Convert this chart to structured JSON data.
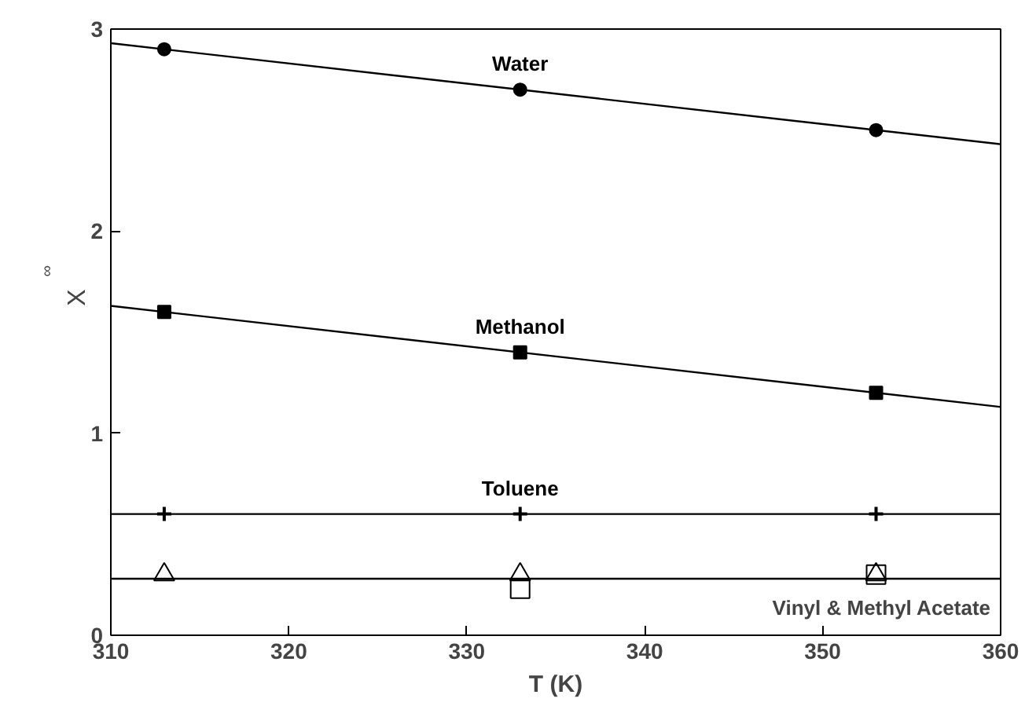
{
  "chart_data": {
    "type": "scatter",
    "xlabel": "T (K)",
    "ylabel": "X$^{∞}$",
    "xlim": [
      310,
      360
    ],
    "ylim": [
      0,
      3
    ],
    "xticks": [
      310,
      320,
      330,
      340,
      350,
      360
    ],
    "yticks": [
      0,
      1,
      2,
      3
    ],
    "grid": false,
    "series": [
      {
        "name": "Water",
        "marker": "circle",
        "color": "#000000",
        "x": [
          313,
          333,
          353
        ],
        "values": [
          2.9,
          2.7,
          2.5
        ]
      },
      {
        "type": "line",
        "color": "#000000",
        "x": [
          310,
          360
        ],
        "values": [
          2.93,
          2.43
        ]
      },
      {
        "name": "Methanol",
        "marker": "square",
        "color": "#000000",
        "x": [
          313,
          333,
          353
        ],
        "values": [
          1.6,
          1.4,
          1.2
        ]
      },
      {
        "type": "line",
        "color": "#000000",
        "x": [
          310,
          360
        ],
        "values": [
          1.63,
          1.13
        ]
      },
      {
        "name": "Toluene",
        "marker": "cross",
        "color": "#000000",
        "x": [
          313,
          333,
          353
        ],
        "values": [
          0.6,
          0.6,
          0.6
        ]
      },
      {
        "type": "line",
        "color": "#000000",
        "x": [
          310,
          360
        ],
        "values": [
          0.6,
          0.6
        ]
      },
      {
        "marker": "triangle",
        "color": "#000000",
        "x": [
          313,
          333,
          353
        ],
        "values": [
          0.3,
          0.3,
          0.3
        ]
      },
      {
        "marker": "square",
        "color": "#000000",
        "x": [
          333,
          353
        ],
        "values": [
          0.23,
          0.3
        ]
      },
      {
        "type": "line",
        "color": "#000000",
        "x": [
          310,
          360
        ],
        "values": [
          0.28,
          0.28
        ]
      }
    ],
    "annotations": [
      "Vinyl & Methyl Acetate"
    ]
  }
}
